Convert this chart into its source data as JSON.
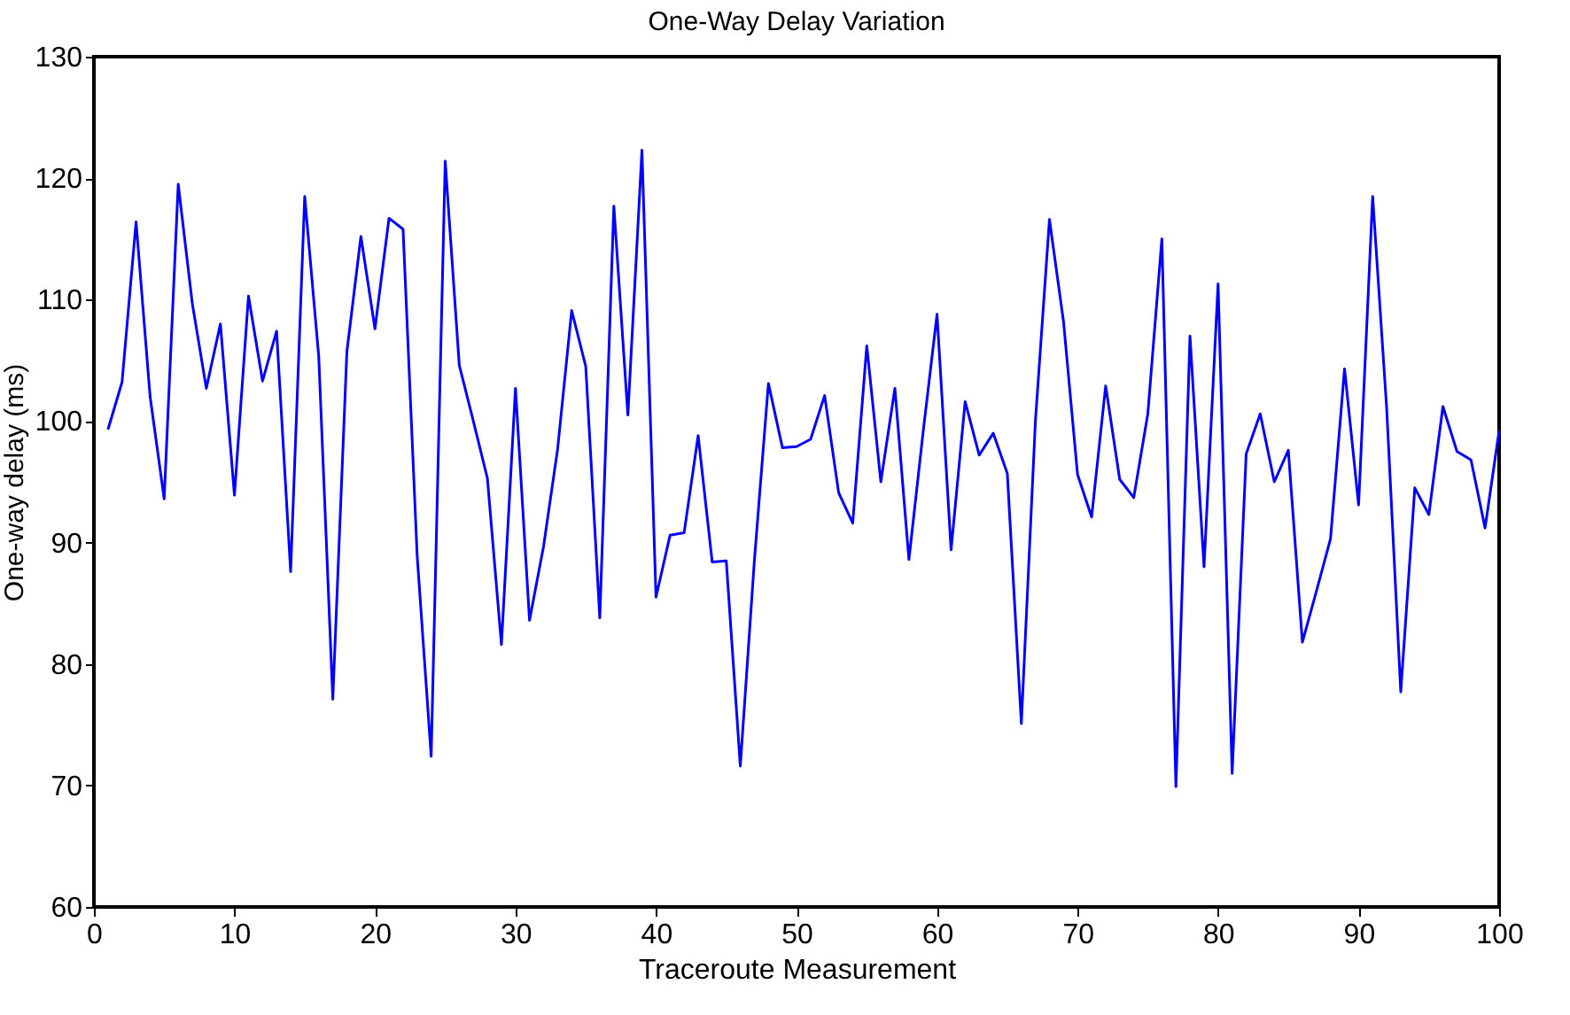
{
  "chart_data": {
    "type": "line",
    "title": "One-Way Delay Variation",
    "xlabel": "Traceroute Measurement",
    "ylabel": "One-way delay (ms)",
    "x": [
      1,
      2,
      3,
      4,
      5,
      6,
      7,
      8,
      9,
      10,
      11,
      12,
      13,
      14,
      15,
      16,
      17,
      18,
      19,
      20,
      21,
      22,
      23,
      24,
      25,
      26,
      27,
      28,
      29,
      30,
      31,
      32,
      33,
      34,
      35,
      36,
      37,
      38,
      39,
      40,
      41,
      42,
      43,
      44,
      45,
      46,
      47,
      48,
      49,
      50,
      51,
      52,
      53,
      54,
      55,
      56,
      57,
      58,
      59,
      60,
      61,
      62,
      63,
      64,
      65,
      66,
      67,
      68,
      69,
      70,
      71,
      72,
      73,
      74,
      75,
      76,
      77,
      78,
      79,
      80,
      81,
      82,
      83,
      84,
      85,
      86,
      87,
      88,
      89,
      90,
      91,
      92,
      93,
      94,
      95,
      96,
      97,
      98,
      99,
      100
    ],
    "series": [
      {
        "color": "#0000ff",
        "values": [
          99.3,
          103.2,
          116.4,
          102,
          93.6,
          119.5,
          109.7,
          102.7,
          108,
          93.9,
          110.3,
          103.3,
          107.4,
          87.6,
          118.5,
          105.3,
          77.1,
          105.7,
          115.2,
          107.6,
          116.7,
          115.8,
          89,
          72.4,
          121.4,
          104.6,
          100,
          95.3,
          81.6,
          102.7,
          83.6,
          89.7,
          97.7,
          109.1,
          104.5,
          83.8,
          117.7,
          100.5,
          122.3,
          85.5,
          90.6,
          90.8,
          98.8,
          88.4,
          88.5,
          71.6,
          88.5,
          103.1,
          97.8,
          97.9,
          98.5,
          102.1,
          94.1,
          91.6,
          106.2,
          95,
          102.7,
          88.6,
          99,
          108.8,
          89.4,
          101.6,
          97.2,
          99,
          95.7,
          75.1,
          100,
          116.6,
          108.2,
          95.6,
          92.1,
          102.9,
          95.2,
          93.7,
          100.6,
          115,
          69.9,
          107,
          88,
          111.3,
          71,
          97.3,
          100.6,
          95,
          97.6,
          81.8,
          86,
          90.3,
          104.3,
          93.1,
          118.5,
          101,
          77.7,
          94.5,
          92.3,
          101.2,
          97.5,
          96.8,
          91.2,
          99.2
        ]
      }
    ],
    "xlim": [
      0,
      100
    ],
    "xticks": [
      0,
      10,
      20,
      30,
      40,
      50,
      60,
      70,
      80,
      90,
      100
    ],
    "ylim": [
      60,
      130
    ],
    "yticks": [
      60,
      70,
      80,
      90,
      100,
      110,
      120,
      130
    ],
    "grid": false,
    "marker": "none",
    "line_style": "solid"
  }
}
